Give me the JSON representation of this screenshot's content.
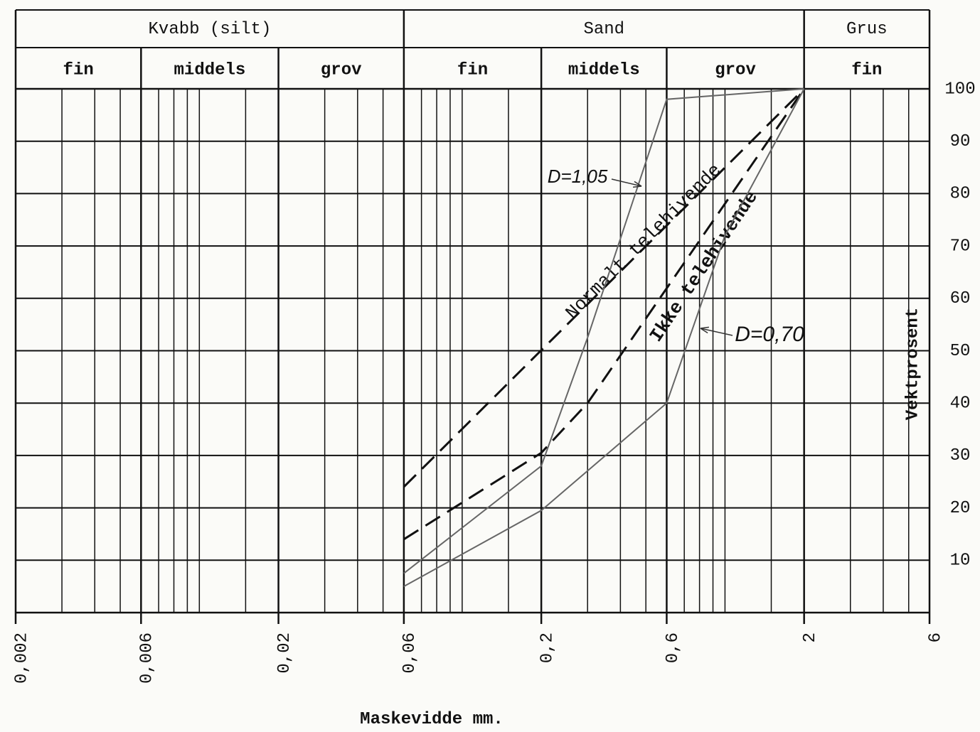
{
  "chart_data": {
    "type": "line",
    "x_label": "Maskevidde mm.",
    "y_label": "Vektprosent",
    "x_log": true,
    "grid": true,
    "classes": [
      {
        "name": "Kvabb (silt)",
        "subclasses": [
          "fin",
          "middels",
          "grov"
        ]
      },
      {
        "name": "Sand",
        "subclasses": [
          "fin",
          "middels",
          "grov"
        ]
      },
      {
        "name": "Grus",
        "subclasses": [
          "fin"
        ]
      }
    ],
    "xlim": [
      0.002,
      6
    ],
    "xticks": [
      {
        "value": 0.002,
        "label": "0,002"
      },
      {
        "value": 0.006,
        "label": "0,006"
      },
      {
        "value": 0.02,
        "label": "0,02"
      },
      {
        "value": 0.06,
        "label": "0,06"
      },
      {
        "value": 0.2,
        "label": "0,2"
      },
      {
        "value": 0.6,
        "label": "0,6"
      },
      2,
      6
    ],
    "x_minor_ticks": [
      0.003,
      0.004,
      0.005,
      0.007,
      0.008,
      0.009,
      0.01,
      0.015,
      0.03,
      0.04,
      0.05,
      0.07,
      0.08,
      0.09,
      0.1,
      0.15,
      0.3,
      0.4,
      0.5,
      0.7,
      0.8,
      0.9,
      1,
      1.5,
      3,
      4,
      5
    ],
    "ylim": [
      0,
      100
    ],
    "yticks": [
      10,
      20,
      30,
      40,
      50,
      60,
      70,
      80,
      90,
      100
    ],
    "series": [
      {
        "name": "Normalt telehivende",
        "color": "#111111",
        "style": "dashed",
        "x": [
          0.06,
          2
        ],
        "values": [
          24,
          100
        ]
      },
      {
        "name": "Ikke telehivende",
        "color": "#111111",
        "style": "dashed",
        "x": [
          0.06,
          0.2,
          0.3,
          2
        ],
        "values": [
          14,
          30.5,
          40,
          100
        ]
      },
      {
        "name": "D=1,05",
        "color": "#666666",
        "style": "solid",
        "x": [
          0.06,
          0.2,
          0.3,
          0.6,
          2
        ],
        "values": [
          7.5,
          28,
          52.5,
          98,
          100
        ]
      },
      {
        "name": "D=0,70",
        "color": "#666666",
        "style": "solid",
        "x": [
          0.06,
          0.2,
          0.6,
          1,
          2
        ],
        "values": [
          5,
          19.5,
          40,
          72,
          100
        ]
      }
    ]
  }
}
